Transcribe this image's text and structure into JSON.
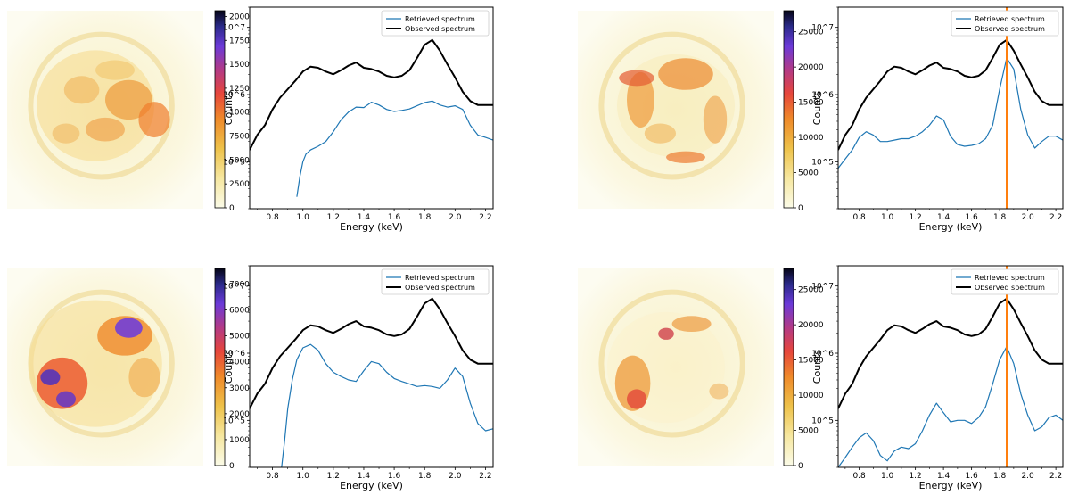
{
  "chart_data": [
    {
      "type": "line",
      "panel": "top-left",
      "image_colorbar": {
        "ticks": [
          "20000",
          "17500",
          "15000",
          "12500",
          "10000",
          "7500",
          "5000",
          "2500",
          "0"
        ],
        "cmap": "CMRmap_r",
        "vmax": 20600
      },
      "xlabel": "Energy (keV)",
      "ylabel": "Counts",
      "yscale": "log",
      "xlim": [
        0.65,
        2.25
      ],
      "ylim": [
        20000,
        20000000
      ],
      "xticks": [
        "0.8",
        "1.0",
        "1.2",
        "1.4",
        "1.6",
        "1.8",
        "2.0",
        "2.2"
      ],
      "yticks": [
        "10^5",
        "10^6",
        "10^7"
      ],
      "legend": {
        "position": "top-right",
        "entries": [
          "Retrieved spectrum",
          "Observed spectrum"
        ]
      },
      "vline": null,
      "series": [
        {
          "name": "Retrieved spectrum",
          "color": "#1f77b4",
          "x": [
            0.96,
            0.98,
            1.0,
            1.02,
            1.05,
            1.1,
            1.15,
            1.2,
            1.25,
            1.3,
            1.35,
            1.4,
            1.45,
            1.5,
            1.55,
            1.6,
            1.65,
            1.7,
            1.75,
            1.8,
            1.85,
            1.9,
            1.95,
            2.0,
            2.05,
            2.1,
            2.15,
            2.2,
            2.25
          ],
          "y": [
            30000,
            60000,
            100000,
            130000,
            150000,
            170000,
            200000,
            280000,
            420000,
            550000,
            650000,
            640000,
            770000,
            700000,
            600000,
            560000,
            580000,
            610000,
            680000,
            760000,
            800000,
            700000,
            650000,
            680000,
            600000,
            350000,
            250000,
            230000,
            210000
          ]
        },
        {
          "name": "Observed spectrum",
          "color": "#000000",
          "x": [
            0.65,
            0.7,
            0.75,
            0.8,
            0.85,
            0.9,
            0.95,
            1.0,
            1.05,
            1.1,
            1.15,
            1.2,
            1.25,
            1.3,
            1.35,
            1.4,
            1.45,
            1.5,
            1.55,
            1.6,
            1.65,
            1.7,
            1.75,
            1.8,
            1.85,
            1.9,
            1.95,
            2.0,
            2.05,
            2.1,
            2.15,
            2.2,
            2.25
          ],
          "y": [
            150000,
            250000,
            350000,
            600000,
            900000,
            1200000,
            1600000,
            2200000,
            2600000,
            2500000,
            2200000,
            2000000,
            2300000,
            2700000,
            3000000,
            2500000,
            2400000,
            2200000,
            1900000,
            1800000,
            1900000,
            2300000,
            3500000,
            5500000,
            6500000,
            4500000,
            2800000,
            1800000,
            1100000,
            800000,
            700000,
            700000,
            700000
          ]
        }
      ]
    },
    {
      "type": "line",
      "panel": "top-right",
      "image_colorbar": {
        "ticks": [
          "25000",
          "20000",
          "15000",
          "10000",
          "5000",
          "0"
        ],
        "cmap": "CMRmap_r",
        "vmax": 28000
      },
      "xlabel": "Energy (keV)",
      "ylabel": "Counts",
      "yscale": "log",
      "xlim": [
        0.65,
        2.25
      ],
      "ylim": [
        20000,
        20000000
      ],
      "xticks": [
        "0.8",
        "1.0",
        "1.2",
        "1.4",
        "1.6",
        "1.8",
        "2.0",
        "2.2"
      ],
      "yticks": [
        "10^5",
        "10^6",
        "10^7"
      ],
      "legend": {
        "position": "top-right",
        "entries": [
          "Retrieved spectrum",
          "Observed spectrum"
        ]
      },
      "vline": {
        "x": 1.85,
        "color": "#ff7f0e"
      },
      "series": [
        {
          "name": "Retrieved spectrum",
          "color": "#1f77b4",
          "x": [
            0.65,
            0.7,
            0.75,
            0.8,
            0.85,
            0.9,
            0.95,
            1.0,
            1.05,
            1.1,
            1.15,
            1.2,
            1.25,
            1.3,
            1.35,
            1.4,
            1.45,
            1.5,
            1.55,
            1.6,
            1.65,
            1.7,
            1.75,
            1.8,
            1.85,
            1.9,
            1.95,
            2.0,
            2.05,
            2.1,
            2.15,
            2.2,
            2.25
          ],
          "y": [
            80000,
            110000,
            150000,
            230000,
            280000,
            250000,
            200000,
            200000,
            210000,
            220000,
            220000,
            240000,
            280000,
            350000,
            480000,
            420000,
            240000,
            180000,
            170000,
            175000,
            185000,
            220000,
            350000,
            1200000,
            3500000,
            2400000,
            600000,
            250000,
            160000,
            200000,
            240000,
            240000,
            210000
          ]
        },
        {
          "name": "Observed spectrum",
          "color": "#000000",
          "x": [
            0.65,
            0.7,
            0.75,
            0.8,
            0.85,
            0.9,
            0.95,
            1.0,
            1.05,
            1.1,
            1.15,
            1.2,
            1.25,
            1.3,
            1.35,
            1.4,
            1.45,
            1.5,
            1.55,
            1.6,
            1.65,
            1.7,
            1.75,
            1.8,
            1.85,
            1.9,
            1.95,
            2.0,
            2.05,
            2.1,
            2.15,
            2.2,
            2.25
          ],
          "y": [
            150000,
            250000,
            350000,
            600000,
            900000,
            1200000,
            1600000,
            2200000,
            2600000,
            2500000,
            2200000,
            2000000,
            2300000,
            2700000,
            3000000,
            2500000,
            2400000,
            2200000,
            1900000,
            1800000,
            1900000,
            2300000,
            3500000,
            5500000,
            6500000,
            4500000,
            2800000,
            1800000,
            1100000,
            800000,
            700000,
            700000,
            700000
          ]
        }
      ]
    },
    {
      "type": "line",
      "panel": "bottom-left",
      "image_colorbar": {
        "ticks": [
          "7000",
          "6000",
          "5000",
          "4000",
          "3000",
          "2000",
          "1000",
          "0"
        ],
        "cmap": "CMRmap_r",
        "vmax": 7600
      },
      "xlabel": "Energy (keV)",
      "ylabel": "Counts",
      "yscale": "log",
      "xlim": [
        0.65,
        2.25
      ],
      "ylim": [
        20000,
        20000000
      ],
      "xticks": [
        "0.8",
        "1.0",
        "1.2",
        "1.4",
        "1.6",
        "1.8",
        "2.0",
        "2.2"
      ],
      "yticks": [
        "10^5",
        "10^6",
        "10^7"
      ],
      "legend": {
        "position": "top-right",
        "entries": [
          "Retrieved spectrum",
          "Observed spectrum"
        ]
      },
      "vline": null,
      "series": [
        {
          "name": "Retrieved spectrum",
          "color": "#1f77b4",
          "x": [
            0.86,
            0.88,
            0.9,
            0.93,
            0.96,
            1.0,
            1.05,
            1.1,
            1.15,
            1.2,
            1.25,
            1.3,
            1.35,
            1.4,
            1.45,
            1.5,
            1.55,
            1.6,
            1.65,
            1.7,
            1.75,
            1.8,
            1.85,
            1.9,
            1.95,
            2.0,
            2.05,
            2.1,
            2.15,
            2.2,
            2.25
          ],
          "y": [
            20000,
            50000,
            150000,
            400000,
            800000,
            1200000,
            1350000,
            1100000,
            700000,
            520000,
            450000,
            400000,
            380000,
            550000,
            750000,
            700000,
            520000,
            420000,
            380000,
            350000,
            320000,
            330000,
            320000,
            300000,
            400000,
            600000,
            450000,
            180000,
            90000,
            70000,
            75000
          ]
        },
        {
          "name": "Observed spectrum",
          "color": "#000000",
          "x": [
            0.65,
            0.7,
            0.75,
            0.8,
            0.85,
            0.9,
            0.95,
            1.0,
            1.05,
            1.1,
            1.15,
            1.2,
            1.25,
            1.3,
            1.35,
            1.4,
            1.45,
            1.5,
            1.55,
            1.6,
            1.65,
            1.7,
            1.75,
            1.8,
            1.85,
            1.9,
            1.95,
            2.0,
            2.05,
            2.1,
            2.15,
            2.2,
            2.25
          ],
          "y": [
            150000,
            250000,
            350000,
            600000,
            900000,
            1200000,
            1600000,
            2200000,
            2600000,
            2500000,
            2200000,
            2000000,
            2300000,
            2700000,
            3000000,
            2500000,
            2400000,
            2200000,
            1900000,
            1800000,
            1900000,
            2300000,
            3500000,
            5500000,
            6500000,
            4500000,
            2800000,
            1800000,
            1100000,
            800000,
            700000,
            700000,
            700000
          ]
        }
      ]
    },
    {
      "type": "line",
      "panel": "bottom-right",
      "image_colorbar": {
        "ticks": [
          "25000",
          "20000",
          "15000",
          "10000",
          "5000",
          "0"
        ],
        "cmap": "CMRmap_r",
        "vmax": 28000
      },
      "xlabel": "Energy (keV)",
      "ylabel": "Counts",
      "yscale": "log",
      "xlim": [
        0.65,
        2.25
      ],
      "ylim": [
        20000,
        20000000
      ],
      "xticks": [
        "0.8",
        "1.0",
        "1.2",
        "1.4",
        "1.6",
        "1.8",
        "2.0",
        "2.2"
      ],
      "yticks": [
        "10^5",
        "10^6",
        "10^7"
      ],
      "legend": {
        "position": "top-right",
        "entries": [
          "Retrieved spectrum",
          "Observed spectrum"
        ]
      },
      "vline": {
        "x": 1.85,
        "color": "#ff7f0e"
      },
      "series": [
        {
          "name": "Retrieved spectrum",
          "color": "#1f77b4",
          "x": [
            0.65,
            0.7,
            0.75,
            0.8,
            0.85,
            0.9,
            0.95,
            1.0,
            1.05,
            1.1,
            1.15,
            1.2,
            1.25,
            1.3,
            1.35,
            1.4,
            1.45,
            1.5,
            1.55,
            1.6,
            1.65,
            1.7,
            1.75,
            1.8,
            1.85,
            1.9,
            1.95,
            2.0,
            2.05,
            2.1,
            2.15,
            2.2,
            2.25
          ],
          "y": [
            20000,
            28000,
            40000,
            55000,
            65000,
            50000,
            30000,
            25000,
            35000,
            40000,
            38000,
            45000,
            70000,
            120000,
            180000,
            130000,
            95000,
            100000,
            100000,
            90000,
            110000,
            160000,
            350000,
            800000,
            1250000,
            700000,
            250000,
            120000,
            70000,
            80000,
            110000,
            120000,
            100000
          ]
        },
        {
          "name": "Observed spectrum",
          "color": "#000000",
          "x": [
            0.65,
            0.7,
            0.75,
            0.8,
            0.85,
            0.9,
            0.95,
            1.0,
            1.05,
            1.1,
            1.15,
            1.2,
            1.25,
            1.3,
            1.35,
            1.4,
            1.45,
            1.5,
            1.55,
            1.6,
            1.65,
            1.7,
            1.75,
            1.8,
            1.85,
            1.9,
            1.95,
            2.0,
            2.05,
            2.1,
            2.15,
            2.2,
            2.25
          ],
          "y": [
            150000,
            250000,
            350000,
            600000,
            900000,
            1200000,
            1600000,
            2200000,
            2600000,
            2500000,
            2200000,
            2000000,
            2300000,
            2700000,
            3000000,
            2500000,
            2400000,
            2200000,
            1900000,
            1800000,
            1900000,
            2300000,
            3500000,
            5500000,
            6500000,
            4500000,
            2800000,
            1800000,
            1100000,
            800000,
            700000,
            700000,
            700000
          ]
        }
      ]
    }
  ]
}
